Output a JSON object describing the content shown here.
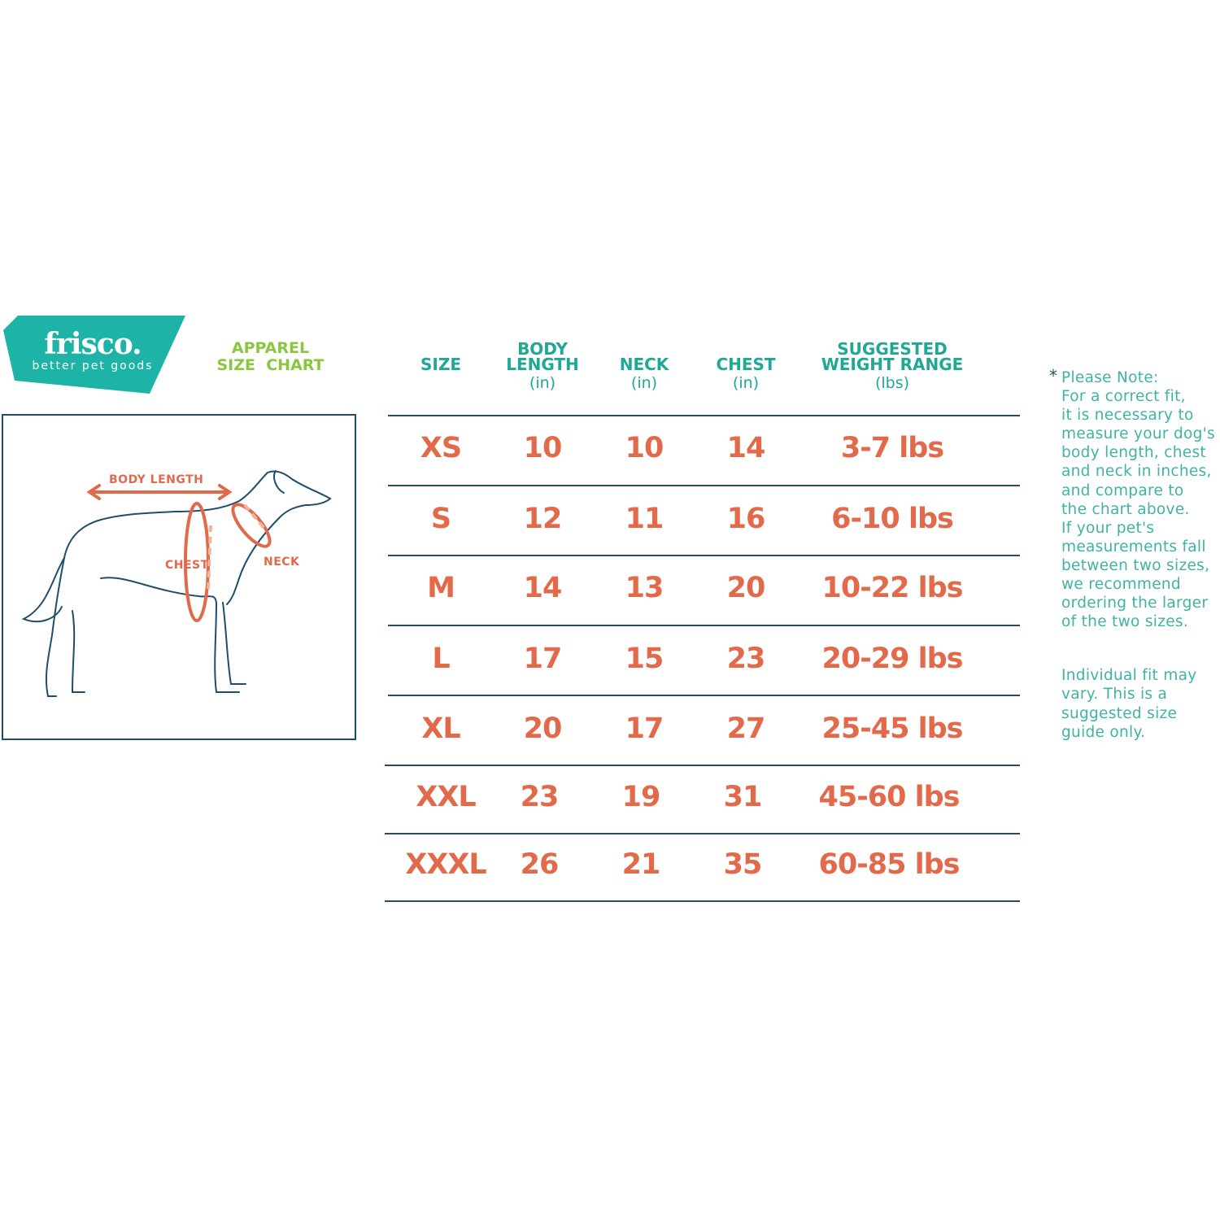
{
  "brand": {
    "name": "frisco.",
    "tagline": "better pet goods",
    "color": "#1db3a6"
  },
  "title": {
    "line1": "APPAREL",
    "line2": "SIZE  CHART",
    "color": "#8cc63f"
  },
  "diagram": {
    "labels": {
      "body_length": "BODY LENGTH",
      "chest": "CHEST",
      "neck": "NECK"
    },
    "accent": "#e2694a",
    "outline": "#1f4e6b"
  },
  "table": {
    "headers": [
      {
        "title": "SIZE",
        "unit": ""
      },
      {
        "title": "BODY\nLENGTH",
        "unit": "(in)"
      },
      {
        "title": "NECK",
        "unit": "(in)"
      },
      {
        "title": "CHEST",
        "unit": "(in)"
      },
      {
        "title": "SUGGESTED\nWEIGHT RANGE",
        "unit": "(lbs)"
      }
    ],
    "rows": [
      [
        "XS",
        "10",
        "10",
        "14",
        "3-7 lbs"
      ],
      [
        "S",
        "12",
        "11",
        "16",
        "6-10 lbs"
      ],
      [
        "M",
        "14",
        "13",
        "20",
        "10-22 lbs"
      ],
      [
        "L",
        "17",
        "15",
        "23",
        "20-29 lbs"
      ],
      [
        "XL",
        "20",
        "17",
        "27",
        "25-45 lbs"
      ],
      [
        "XXL",
        "23",
        "19",
        "31",
        "45-60 lbs"
      ],
      [
        "XXXL",
        "26",
        "21",
        "35",
        "60-85 lbs"
      ]
    ],
    "header_color": "#1fa896",
    "value_color": "#e2694a"
  },
  "note": {
    "star": "*",
    "paragraph1": "Please Note:\nFor a correct fit,\nit is necessary to\nmeasure your dog's\nbody length, chest\nand neck in inches,\nand compare to\nthe chart above.\nIf your pet's\nmeasurements fall\nbetween two sizes,\nwe recommend\nordering the larger\nof the two sizes.",
    "paragraph2": "Individual fit may\nvary. This is a\nsuggested size\nguide only."
  }
}
